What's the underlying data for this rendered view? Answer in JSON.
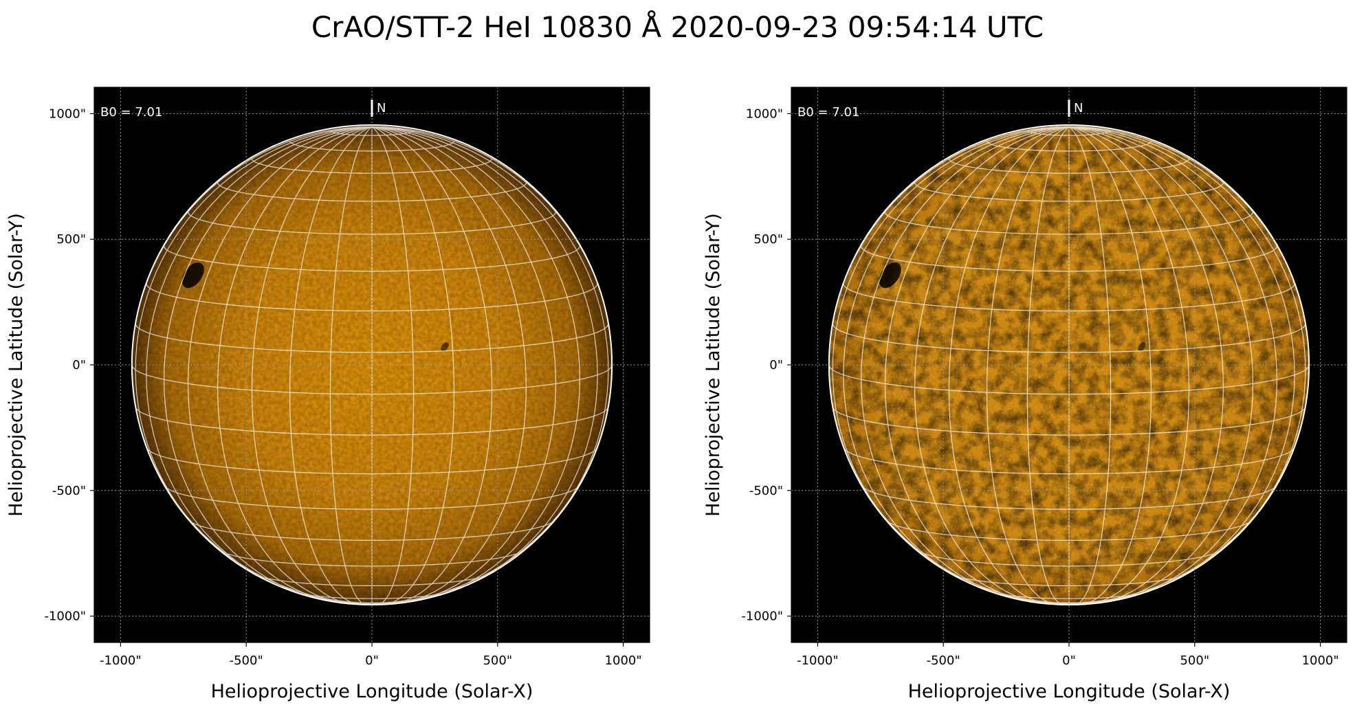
{
  "figure": {
    "title": "CrAO/STT-2 HeI 10830 Å 2020-09-23 09:54:14 UTC"
  },
  "panels": [
    {
      "id": "left",
      "x_tick_labels": [
        "-1000\"",
        "-500\"",
        "0\"",
        "500\"",
        "1000\""
      ],
      "y_tick_labels": [
        "1000\"",
        "500\"",
        "0\"",
        "-500\"",
        "-1000\""
      ],
      "xlabel": "Helioprojective Longitude (Solar-X)",
      "ylabel": "Helioprojective Latitude (Solar-Y)",
      "b0_label": "B0 = 7.01",
      "north_label": "N",
      "disk_colors": {
        "center": "#e3960a",
        "mid": "#d48a0c",
        "limb": "#5a3506"
      }
    },
    {
      "id": "right",
      "x_tick_labels": [
        "-1000\"",
        "-500\"",
        "0\"",
        "500\"",
        "1000\""
      ],
      "y_tick_labels": [
        "1000\"",
        "500\"",
        "0\"",
        "-500\"",
        "-1000\""
      ],
      "xlabel": "Helioprojective Longitude (Solar-X)",
      "ylabel": "Helioprojective Latitude (Solar-Y)",
      "b0_label": "B0 = 7.01",
      "north_label": "N",
      "disk_colors": {
        "center": "#d08a10",
        "mid": "#c98512",
        "limb": "#a86a0a"
      }
    }
  ],
  "colors": {
    "sky": "#000000",
    "grid": "#ffffff",
    "coord_grid": "#9a9a9a"
  },
  "solar_features": [
    {
      "name": "active-region-ne-limb",
      "lon_deg": -56,
      "lat_deg": 26
    },
    {
      "name": "filament-center-east",
      "lon_deg": 18,
      "lat_deg": 11
    }
  ]
}
